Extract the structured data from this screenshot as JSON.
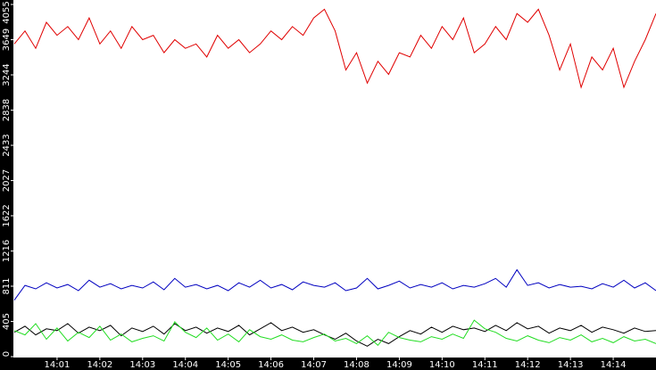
{
  "chart_data": {
    "type": "line",
    "x": [
      0,
      0.25,
      0.5,
      0.75,
      1,
      1.25,
      1.5,
      1.75,
      2,
      2.25,
      2.5,
      2.75,
      3,
      3.25,
      3.5,
      3.75,
      4,
      4.25,
      4.5,
      4.75,
      5,
      5.25,
      5.5,
      5.75,
      6,
      6.25,
      6.5,
      6.75,
      7,
      7.25,
      7.5,
      7.75,
      8,
      8.25,
      8.5,
      8.75,
      9,
      9.25,
      9.5,
      9.75,
      10,
      10.25,
      10.5,
      10.75,
      11,
      11.25,
      11.5,
      11.75,
      12,
      12.25,
      12.5,
      12.75,
      13,
      13.25,
      13.5,
      13.75,
      14,
      14.25,
      14.5,
      14.75,
      15
    ],
    "series": [
      {
        "color": "#e00000",
        "values": [
          3600,
          3750,
          3550,
          3850,
          3700,
          3800,
          3650,
          3900,
          3600,
          3750,
          3550,
          3800,
          3650,
          3700,
          3500,
          3650,
          3550,
          3600,
          3450,
          3700,
          3550,
          3650,
          3500,
          3600,
          3750,
          3650,
          3800,
          3700,
          3900,
          4000,
          3750,
          3300,
          3500,
          3150,
          3400,
          3250,
          3500,
          3450,
          3700,
          3550,
          3800,
          3650,
          3900,
          3500,
          3600,
          3800,
          3650,
          3950,
          3850,
          4000,
          3700,
          3300,
          3600,
          3100,
          3450,
          3300,
          3550,
          3100,
          3400,
          3650,
          3950
        ]
      },
      {
        "color": "#0000c0",
        "values": [
          650,
          820,
          780,
          850,
          790,
          830,
          760,
          880,
          800,
          840,
          780,
          820,
          790,
          860,
          770,
          900,
          800,
          830,
          780,
          820,
          760,
          850,
          800,
          880,
          790,
          830,
          770,
          860,
          820,
          800,
          850,
          760,
          790,
          900,
          780,
          820,
          870,
          790,
          830,
          800,
          850,
          780,
          820,
          800,
          840,
          900,
          800,
          1000,
          820,
          850,
          790,
          830,
          800,
          810,
          780,
          840,
          800,
          880,
          790,
          850,
          760
        ]
      },
      {
        "color": "#000000",
        "values": [
          280,
          350,
          250,
          320,
          300,
          380,
          270,
          340,
          300,
          360,
          240,
          330,
          290,
          350,
          260,
          380,
          300,
          340,
          270,
          330,
          290,
          360,
          250,
          320,
          390,
          300,
          340,
          280,
          310,
          250,
          200,
          270,
          180,
          120,
          200,
          150,
          230,
          300,
          260,
          340,
          280,
          350,
          310,
          330,
          290,
          360,
          300,
          390,
          320,
          350,
          270,
          330,
          300,
          360,
          280,
          340,
          310,
          270,
          330,
          290,
          300
        ]
      },
      {
        "color": "#22dd22",
        "values": [
          300,
          250,
          380,
          200,
          330,
          180,
          280,
          220,
          350,
          190,
          260,
          170,
          210,
          240,
          180,
          400,
          280,
          220,
          330,
          190,
          260,
          170,
          310,
          230,
          200,
          250,
          190,
          170,
          220,
          260,
          180,
          210,
          150,
          240,
          130,
          280,
          220,
          190,
          170,
          230,
          200,
          260,
          210,
          420,
          320,
          280,
          210,
          180,
          240,
          190,
          160,
          220,
          190,
          250,
          170,
          210,
          160,
          230,
          180,
          200,
          150
        ]
      }
    ],
    "xlim": [
      0,
      15
    ],
    "xticks": [
      {
        "value": 1,
        "label": "14:01"
      },
      {
        "value": 2,
        "label": "14:02"
      },
      {
        "value": 3,
        "label": "14:03"
      },
      {
        "value": 4,
        "label": "14:04"
      },
      {
        "value": 5,
        "label": "14:05"
      },
      {
        "value": 6,
        "label": "14:06"
      },
      {
        "value": 7,
        "label": "14:07"
      },
      {
        "value": 8,
        "label": "14:08"
      },
      {
        "value": 9,
        "label": "14:09"
      },
      {
        "value": 10,
        "label": "14:10"
      },
      {
        "value": 11,
        "label": "14:11"
      },
      {
        "value": 12,
        "label": "14:12"
      },
      {
        "value": 13,
        "label": "14:13"
      },
      {
        "value": 14,
        "label": "14:14"
      }
    ],
    "ylim": [
      0,
      4055
    ],
    "yticks": [
      0,
      405,
      811,
      1216,
      1622,
      2027,
      2433,
      2838,
      3244,
      3649,
      4055
    ]
  }
}
